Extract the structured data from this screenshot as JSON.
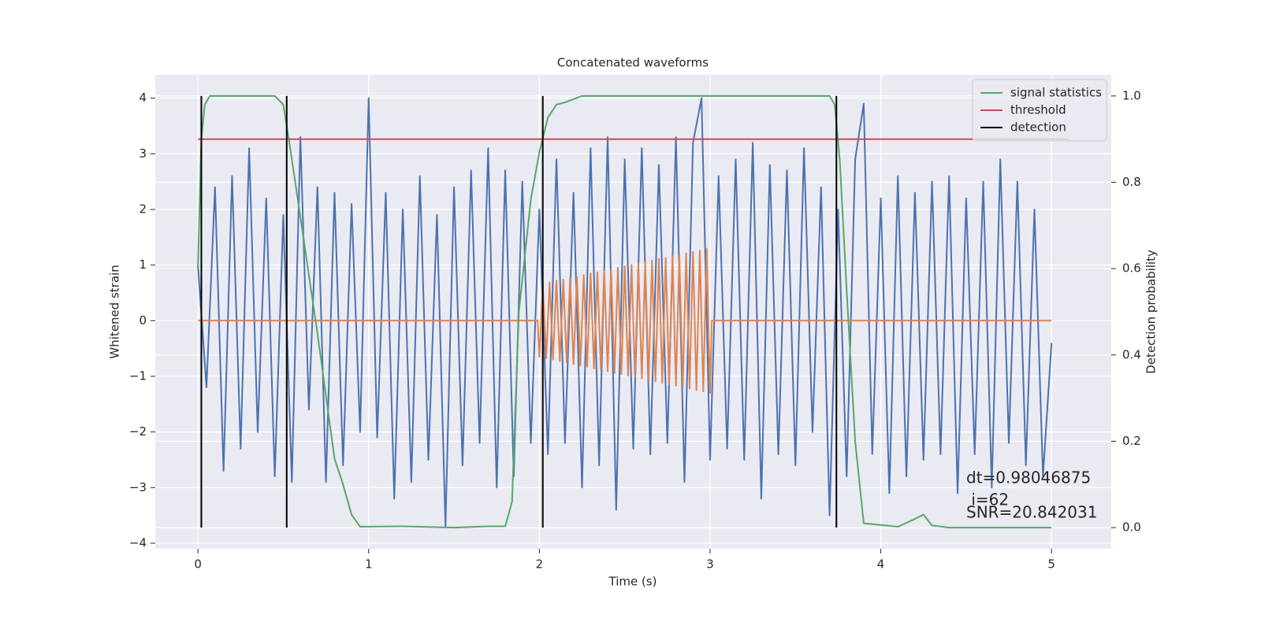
{
  "chart_data": {
    "type": "line",
    "title": "Concatenated waveforms",
    "xlabel": "Time (s)",
    "ylabel": "Whitened strain",
    "y2label": "Detection probability",
    "xlim": [
      -0.25,
      5.35
    ],
    "ylim": [
      -4.1,
      4.42
    ],
    "y2lim": [
      -0.049,
      1.049
    ],
    "xticks": [
      0,
      1,
      2,
      3,
      4,
      5
    ],
    "yticks": [
      {
        "value": -4,
        "label": "−4"
      },
      {
        "value": -3,
        "label": "−3"
      },
      {
        "value": -2,
        "label": "−2"
      },
      {
        "value": -1,
        "label": "−1"
      },
      0,
      1,
      2,
      3,
      4
    ],
    "y2ticks": [
      {
        "value": 0,
        "label": "0.0"
      },
      0.2,
      0.4,
      0.6,
      0.8,
      {
        "value": 1,
        "label": "1.0"
      }
    ],
    "grid": true,
    "legend_loc": "upper right",
    "series": [
      {
        "color": "#4c72b0",
        "x": [
          0,
          0.05,
          0.1,
          0.15,
          0.2,
          0.25,
          0.3,
          0.35,
          0.4,
          0.45,
          0.5,
          0.55,
          0.6,
          0.65,
          0.7,
          0.75,
          0.8,
          0.85,
          0.9,
          0.95,
          1,
          1.05,
          1.1,
          1.15,
          1.2,
          1.25,
          1.3,
          1.35,
          1.4,
          1.45,
          1.5,
          1.55,
          1.6,
          1.65,
          1.7,
          1.75,
          1.8,
          1.85,
          1.9,
          1.95,
          2,
          2.05,
          2.1,
          2.15,
          2.2,
          2.25,
          2.3,
          2.35,
          2.4,
          2.45,
          2.5,
          2.55,
          2.6,
          2.65,
          2.7,
          2.75,
          2.8,
          2.85,
          2.9,
          2.95,
          3,
          3.05,
          3.1,
          3.15,
          3.2,
          3.25,
          3.3,
          3.35,
          3.4,
          3.45,
          3.5,
          3.55,
          3.6,
          3.65,
          3.7,
          3.75,
          3.8,
          3.85,
          3.9,
          3.95,
          4,
          4.05,
          4.1,
          4.15,
          4.2,
          4.25,
          4.3,
          4.35,
          4.4,
          4.45,
          4.5,
          4.55,
          4.6,
          4.65,
          4.7,
          4.75,
          4.8,
          4.85,
          4.9,
          4.95,
          5
        ],
        "values": [
          1.0,
          -1.2,
          2.4,
          -2.7,
          2.6,
          -2.3,
          3.1,
          -2.0,
          2.2,
          -2.8,
          1.9,
          -2.9,
          3.3,
          -1.6,
          2.4,
          -2.9,
          2.3,
          -2.6,
          2.1,
          -2.0,
          4.0,
          -2.1,
          2.3,
          -3.2,
          2.0,
          -2.9,
          2.6,
          -2.5,
          1.9,
          -3.7,
          2.4,
          -2.6,
          2.7,
          -2.2,
          3.1,
          -3.0,
          2.7,
          -2.8,
          2.5,
          -2.2,
          2.0,
          -2.4,
          2.9,
          -2.2,
          2.3,
          -3.0,
          3.1,
          -2.6,
          3.3,
          -3.4,
          2.9,
          -2.3,
          3.1,
          -2.4,
          2.8,
          -2.2,
          3.3,
          -2.9,
          3.2,
          4.0,
          -2.5,
          2.6,
          -2.3,
          2.9,
          -2.5,
          3.2,
          -3.2,
          2.8,
          -2.4,
          2.7,
          -2.6,
          3.1,
          -2.0,
          2.4,
          -3.5,
          2.0,
          -2.8,
          2.9,
          3.9,
          -2.4,
          2.2,
          -3.1,
          2.6,
          -2.8,
          2.3,
          -2.5,
          2.5,
          -2.4,
          2.6,
          -3.1,
          2.2,
          -2.4,
          2.5,
          -3.0,
          2.9,
          -2.2,
          2.5,
          -2.6,
          2.0,
          -2.8,
          -0.4
        ]
      },
      {
        "color": "#dd8452",
        "x": [
          0,
          1.99,
          2.0,
          2.02,
          2.04,
          2.06,
          2.08,
          2.1,
          2.12,
          2.14,
          2.16,
          2.18,
          2.2,
          2.22,
          2.24,
          2.26,
          2.28,
          2.3,
          2.32,
          2.34,
          2.36,
          2.38,
          2.4,
          2.42,
          2.44,
          2.46,
          2.48,
          2.5,
          2.52,
          2.54,
          2.56,
          2.58,
          2.6,
          2.62,
          2.64,
          2.66,
          2.68,
          2.7,
          2.72,
          2.74,
          2.76,
          2.78,
          2.8,
          2.82,
          2.84,
          2.86,
          2.88,
          2.9,
          2.92,
          2.94,
          2.96,
          2.98,
          3.0,
          3.01,
          5
        ],
        "values": [
          0,
          0,
          -0.65,
          0.66,
          -0.68,
          0.69,
          -0.7,
          0.72,
          -0.73,
          0.74,
          -0.75,
          0.77,
          -0.78,
          0.79,
          -0.81,
          0.82,
          -0.83,
          0.85,
          -0.86,
          0.87,
          -0.88,
          0.9,
          -0.91,
          0.92,
          -0.94,
          0.95,
          -0.96,
          0.98,
          -0.99,
          1.0,
          -1.01,
          1.03,
          -1.04,
          1.05,
          -1.07,
          1.08,
          -1.09,
          1.11,
          -1.12,
          1.13,
          -1.14,
          1.16,
          -1.17,
          1.18,
          -1.2,
          1.21,
          -1.22,
          1.24,
          -1.25,
          1.26,
          -1.27,
          1.29,
          -1.3,
          0,
          0
        ]
      },
      {
        "name": "signal statistics",
        "color": "#55a868",
        "axis": "y2",
        "x": [
          0,
          0.02,
          0.04,
          0.07,
          0.45,
          0.5,
          0.54,
          0.6,
          0.7,
          0.8,
          0.85,
          0.9,
          0.95,
          1.2,
          1.5,
          1.7,
          1.8,
          1.84,
          1.88,
          1.95,
          2.0,
          2.05,
          2.1,
          2.15,
          2.25,
          3.7,
          3.73,
          3.76,
          3.8,
          3.85,
          3.9,
          4.1,
          4.2,
          4.25,
          4.3,
          4.4,
          5.0
        ],
        "values": [
          0.6,
          0.9,
          0.98,
          1.0,
          1.0,
          0.98,
          0.88,
          0.72,
          0.45,
          0.16,
          0.1,
          0.03,
          0.002,
          0.003,
          0.0,
          0.003,
          0.003,
          0.06,
          0.5,
          0.76,
          0.87,
          0.95,
          0.98,
          0.985,
          1.0,
          1.0,
          0.98,
          0.85,
          0.55,
          0.2,
          0.01,
          0.002,
          0.02,
          0.03,
          0.005,
          0.0,
          0.0
        ]
      },
      {
        "name": "threshold",
        "color": "#c44e52",
        "axis": "y2",
        "x": [
          0,
          5.1
        ],
        "values": [
          0.9,
          0.9
        ]
      },
      {
        "name": "detection",
        "color": "#000000",
        "axis": "y2",
        "kind": "vlines",
        "x": [
          0.02,
          0.52,
          2.02,
          3.74
        ],
        "ymin": 0,
        "ymax": 1
      }
    ],
    "annotations": [
      "dt=0.98046875",
      " i=62",
      "SNR=20.842031"
    ]
  }
}
